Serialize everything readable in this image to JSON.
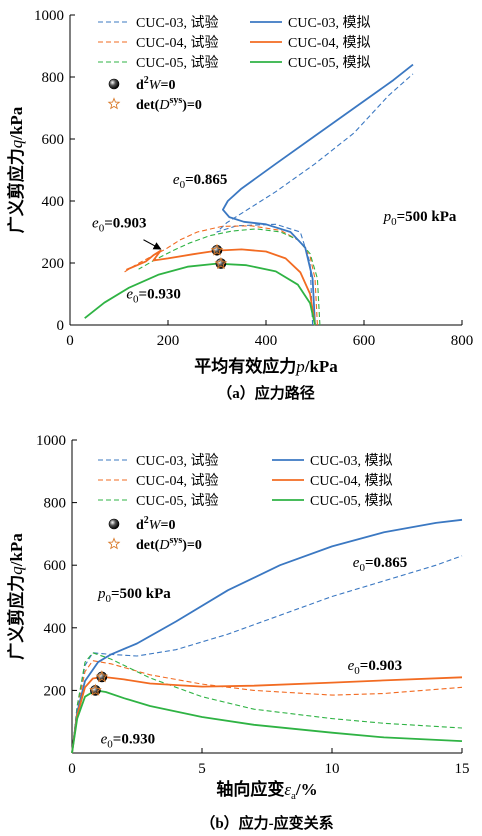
{
  "chart_data": [
    {
      "type": "line",
      "id": "a",
      "caption": "（a）应力路径",
      "xlabel_main": "平均有效应力",
      "xlabel_var": "p",
      "xlabel_unit": "/kPa",
      "ylabel_main": "广义剪应力",
      "ylabel_var": "q",
      "ylabel_unit": "/kPa",
      "xlim": [
        0,
        800
      ],
      "ylim": [
        0,
        1000
      ],
      "xticks": [
        0,
        200,
        400,
        600,
        800
      ],
      "yticks": [
        0,
        200,
        400,
        600,
        800,
        1000
      ],
      "colors": {
        "CUC-03": "#3b78c2",
        "CUC-04": "#f26b22",
        "CUC-05": "#2fb344"
      },
      "legend": [
        {
          "label": "CUC-03, 试验",
          "series": "CUC-03",
          "style": "dashed"
        },
        {
          "label": "CUC-03, 模拟",
          "series": "CUC-03",
          "style": "solid"
        },
        {
          "label": "CUC-04, 试验",
          "series": "CUC-04",
          "style": "dashed"
        },
        {
          "label": "CUC-04, 模拟",
          "series": "CUC-04",
          "style": "solid"
        },
        {
          "label": "CUC-05, 试验",
          "series": "CUC-05",
          "style": "dashed"
        },
        {
          "label": "CUC-05, 模拟",
          "series": "CUC-05",
          "style": "solid"
        }
      ],
      "marker_legend": [
        {
          "symbol": "ball",
          "label_main": "d",
          "label_sup": "2",
          "label_rest": "W=0"
        },
        {
          "symbol": "star",
          "label_main": "det(",
          "label_var": "D",
          "label_sup": "sys",
          "label_rest": ")=0"
        }
      ],
      "series": [
        {
          "name": "CUC-03, 试验",
          "color_key": "CUC-03",
          "style": "dashed",
          "points": [
            [
              495,
              0
            ],
            [
              490,
              200
            ],
            [
              470,
              300
            ],
            [
              420,
              325
            ],
            [
              370,
              322
            ],
            [
              340,
              320
            ],
            [
              300,
              300
            ],
            [
              320,
              330
            ],
            [
              360,
              370
            ],
            [
              420,
              430
            ],
            [
              500,
              520
            ],
            [
              580,
              620
            ],
            [
              650,
              740
            ],
            [
              700,
              810
            ]
          ]
        },
        {
          "name": "CUC-03, 模拟",
          "color_key": "CUC-03",
          "style": "solid",
          "points": [
            [
              500,
              0
            ],
            [
              495,
              150
            ],
            [
              480,
              250
            ],
            [
              450,
              300
            ],
            [
              400,
              325
            ],
            [
              355,
              333
            ],
            [
              325,
              348
            ],
            [
              312,
              372
            ],
            [
              322,
              400
            ],
            [
              350,
              440
            ],
            [
              420,
              520
            ],
            [
              500,
              610
            ],
            [
              580,
              700
            ],
            [
              660,
              790
            ],
            [
              700,
              840
            ]
          ]
        },
        {
          "name": "CUC-04, 试验",
          "color_key": "CUC-04",
          "style": "dashed",
          "points": [
            [
              505,
              0
            ],
            [
              500,
              150
            ],
            [
              490,
              220
            ],
            [
              470,
              270
            ],
            [
              430,
              305
            ],
            [
              370,
              320
            ],
            [
              310,
              318
            ],
            [
              260,
              300
            ],
            [
              225,
              275
            ],
            [
              195,
              245
            ],
            [
              165,
              220
            ],
            [
              135,
              195
            ],
            [
              110,
              170
            ]
          ]
        },
        {
          "name": "CUC-04, 模拟",
          "color_key": "CUC-04",
          "style": "solid",
          "points": [
            [
              500,
              0
            ],
            [
              490,
              100
            ],
            [
              470,
              170
            ],
            [
              440,
              215
            ],
            [
              400,
              237
            ],
            [
              350,
              244
            ],
            [
              300,
              240
            ],
            [
              250,
              228
            ],
            [
              200,
              215
            ],
            [
              170,
              208
            ],
            [
              185,
              240
            ],
            [
              170,
              225
            ],
            [
              155,
              205
            ],
            [
              130,
              188
            ],
            [
              115,
              178
            ]
          ]
        },
        {
          "name": "CUC-05, 试验",
          "color_key": "CUC-05",
          "style": "dashed",
          "points": [
            [
              510,
              0
            ],
            [
              505,
              150
            ],
            [
              490,
              230
            ],
            [
              465,
              275
            ],
            [
              430,
              300
            ],
            [
              380,
              310
            ],
            [
              330,
              303
            ],
            [
              285,
              288
            ],
            [
              245,
              265
            ],
            [
              210,
              240
            ],
            [
              175,
              212
            ],
            [
              140,
              180
            ]
          ]
        },
        {
          "name": "CUC-05, 模拟",
          "color_key": "CUC-05",
          "style": "solid",
          "points": [
            [
              500,
              0
            ],
            [
              490,
              70
            ],
            [
              465,
              130
            ],
            [
              420,
              173
            ],
            [
              360,
              193
            ],
            [
              300,
              198
            ],
            [
              240,
              188
            ],
            [
              180,
              162
            ],
            [
              120,
              120
            ],
            [
              70,
              72
            ],
            [
              30,
              22
            ]
          ]
        }
      ],
      "markers": [
        {
          "type": "ball",
          "x": 300,
          "y": 241
        },
        {
          "type": "ball",
          "x": 308,
          "y": 198
        },
        {
          "type": "star",
          "x": 300,
          "y": 241
        },
        {
          "type": "star",
          "x": 308,
          "y": 198
        }
      ],
      "annotations": [
        {
          "label": "e",
          "sub": "0",
          "value": "=0.865",
          "x": 210,
          "y": 455
        },
        {
          "label": "e",
          "sub": "0",
          "value": "=0.903",
          "x": 45,
          "y": 315
        },
        {
          "label": "e",
          "sub": "0",
          "value": "=0.930",
          "x": 115,
          "y": 85
        },
        {
          "label": "p",
          "sub": "0",
          "value": "=500 kPa",
          "x": 640,
          "y": 335
        }
      ],
      "arrow": {
        "from": [
          150,
          275
        ],
        "to": [
          185,
          245
        ]
      }
    },
    {
      "type": "line",
      "id": "b",
      "caption": "（b）应力-应变关系",
      "xlabel_main": "轴向应变",
      "xlabel_var": "ε",
      "xlabel_sub": "a",
      "xlabel_unit": "/%",
      "ylabel_main": "广义剪应力",
      "ylabel_var": "q",
      "ylabel_unit": "/kPa",
      "xlim": [
        0,
        15
      ],
      "ylim": [
        0,
        1000
      ],
      "xticks": [
        0,
        5,
        10,
        15
      ],
      "yticks": [
        200,
        400,
        600,
        800,
        1000
      ],
      "colors": {
        "CUC-03": "#3b78c2",
        "CUC-04": "#f26b22",
        "CUC-05": "#2fb344"
      },
      "legend": [
        {
          "label": "CUC-03, 试验",
          "series": "CUC-03",
          "style": "dashed"
        },
        {
          "label": "CUC-03, 模拟",
          "series": "CUC-03",
          "style": "solid"
        },
        {
          "label": "CUC-04, 试验",
          "series": "CUC-04",
          "style": "dashed"
        },
        {
          "label": "CUC-04, 模拟",
          "series": "CUC-04",
          "style": "solid"
        },
        {
          "label": "CUC-05, 试验",
          "series": "CUC-05",
          "style": "dashed"
        },
        {
          "label": "CUC-05, 模拟",
          "series": "CUC-05",
          "style": "solid"
        }
      ],
      "marker_legend": [
        {
          "symbol": "ball",
          "label_main": "d",
          "label_sup": "2",
          "label_rest": "W=0"
        },
        {
          "symbol": "star",
          "label_main": "det(",
          "label_var": "D",
          "label_sup": "sys",
          "label_rest": ")=0"
        }
      ],
      "series": [
        {
          "name": "CUC-03, 试验",
          "color_key": "CUC-03",
          "style": "dashed",
          "points": [
            [
              0,
              0
            ],
            [
              0.2,
              150
            ],
            [
              0.5,
              280
            ],
            [
              0.8,
              320
            ],
            [
              1.5,
              315
            ],
            [
              2.5,
              310
            ],
            [
              4,
              330
            ],
            [
              6,
              380
            ],
            [
              8,
              440
            ],
            [
              10,
              500
            ],
            [
              12,
              550
            ],
            [
              14,
              600
            ],
            [
              15,
              630
            ]
          ]
        },
        {
          "name": "CUC-03, 模拟",
          "color_key": "CUC-03",
          "style": "solid",
          "points": [
            [
              0,
              0
            ],
            [
              0.2,
              130
            ],
            [
              0.5,
              230
            ],
            [
              1,
              290
            ],
            [
              1.5,
              315
            ],
            [
              2.5,
              350
            ],
            [
              4,
              420
            ],
            [
              6,
              520
            ],
            [
              8,
              600
            ],
            [
              10,
              660
            ],
            [
              12,
              705
            ],
            [
              14,
              735
            ],
            [
              15,
              745
            ]
          ]
        },
        {
          "name": "CUC-04, 试验",
          "color_key": "CUC-04",
          "style": "dashed",
          "points": [
            [
              0,
              0
            ],
            [
              0.2,
              140
            ],
            [
              0.5,
              260
            ],
            [
              0.8,
              295
            ],
            [
              1.5,
              285
            ],
            [
              3,
              250
            ],
            [
              5,
              220
            ],
            [
              7,
              200
            ],
            [
              10,
              185
            ],
            [
              12,
              190
            ],
            [
              15,
              210
            ]
          ]
        },
        {
          "name": "CUC-04, 模拟",
          "color_key": "CUC-04",
          "style": "solid",
          "points": [
            [
              0,
              0
            ],
            [
              0.2,
              120
            ],
            [
              0.5,
              210
            ],
            [
              0.8,
              238
            ],
            [
              1.2,
              243
            ],
            [
              2,
              235
            ],
            [
              3,
              222
            ],
            [
              5,
              212
            ],
            [
              7,
              215
            ],
            [
              10,
              225
            ],
            [
              12,
              232
            ],
            [
              15,
              242
            ]
          ]
        },
        {
          "name": "CUC-05, 试验",
          "color_key": "CUC-05",
          "style": "dashed",
          "points": [
            [
              0,
              0
            ],
            [
              0.2,
              150
            ],
            [
              0.5,
              290
            ],
            [
              0.8,
              320
            ],
            [
              1.5,
              300
            ],
            [
              3,
              240
            ],
            [
              5,
              180
            ],
            [
              7,
              140
            ],
            [
              10,
              110
            ],
            [
              12,
              95
            ],
            [
              15,
              80
            ]
          ]
        },
        {
          "name": "CUC-05, 模拟",
          "color_key": "CUC-05",
          "style": "solid",
          "points": [
            [
              0,
              0
            ],
            [
              0.2,
              110
            ],
            [
              0.5,
              180
            ],
            [
              0.9,
              200
            ],
            [
              1.3,
              195
            ],
            [
              2,
              175
            ],
            [
              3,
              150
            ],
            [
              5,
              115
            ],
            [
              7,
              90
            ],
            [
              10,
              65
            ],
            [
              12,
              50
            ],
            [
              15,
              38
            ]
          ]
        }
      ],
      "markers": [
        {
          "type": "ball",
          "x": 1.15,
          "y": 243
        },
        {
          "type": "ball",
          "x": 0.9,
          "y": 200
        },
        {
          "type": "star",
          "x": 1.15,
          "y": 243
        },
        {
          "type": "star",
          "x": 0.9,
          "y": 200
        }
      ],
      "annotations": [
        {
          "label": "e",
          "sub": "0",
          "value": "=0.865",
          "x": 10.8,
          "y": 595
        },
        {
          "label": "e",
          "sub": "0",
          "value": "=0.903",
          "x": 10.6,
          "y": 265
        },
        {
          "label": "e",
          "sub": "0",
          "value": "=0.930",
          "x": 1.1,
          "y": 30
        },
        {
          "label": "p",
          "sub": "0",
          "value": "=500 kPa",
          "x": 1.0,
          "y": 495
        }
      ]
    }
  ]
}
